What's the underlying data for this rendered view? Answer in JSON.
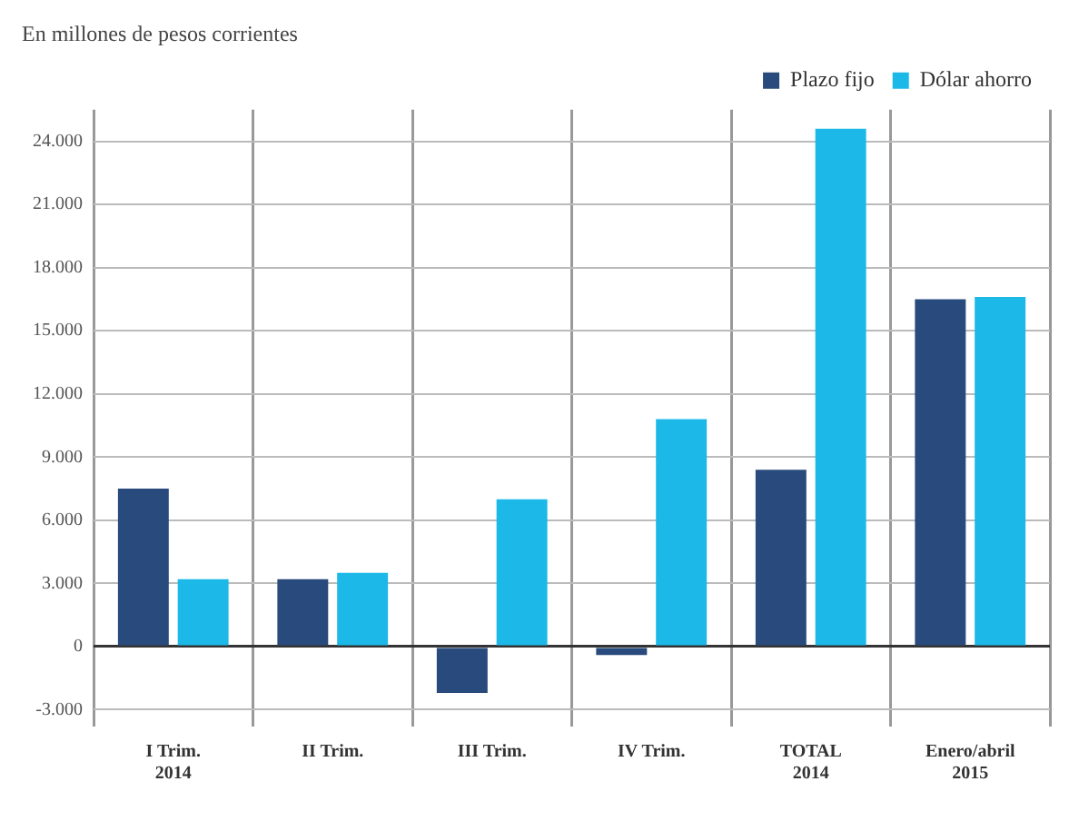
{
  "chart_data": {
    "type": "bar",
    "title": "En millones de pesos corrientes",
    "categories": [
      "I Trim.\n2014",
      "II Trim.",
      "III Trim.",
      "IV Trim.",
      "TOTAL\n2014",
      "Enero/abril\n2015"
    ],
    "series": [
      {
        "name": "Plazo fijo",
        "color": "#284a7c",
        "values": [
          7500,
          3200,
          -2200,
          -400,
          8400,
          16500
        ]
      },
      {
        "name": "Dólar ahorro",
        "color": "#1cb8e8",
        "values": [
          3200,
          3500,
          7000,
          10800,
          24600,
          16600
        ]
      }
    ],
    "ylim": [
      -3800,
      25500
    ],
    "yticks": [
      {
        "value": -3000,
        "label": "-3.000"
      },
      {
        "value": 0,
        "label": "0"
      },
      {
        "value": 3000,
        "label": "3.000"
      },
      {
        "value": 6000,
        "label": "6.000"
      },
      {
        "value": 9000,
        "label": "9.000"
      },
      {
        "value": 12000,
        "label": "12.000"
      },
      {
        "value": 15000,
        "label": "15.000"
      },
      {
        "value": 18000,
        "label": "18.000"
      },
      {
        "value": 21000,
        "label": "21.000"
      },
      {
        "value": 24000,
        "label": "24.000"
      }
    ],
    "grid": true,
    "legend": "top right"
  }
}
